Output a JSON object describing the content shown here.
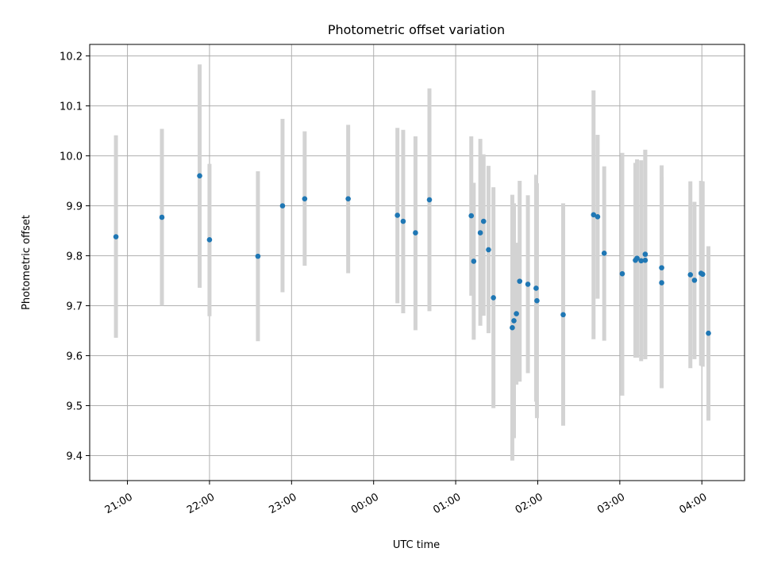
{
  "chart_data": {
    "type": "scatter",
    "title": "Photometric offset variation",
    "xlabel": "UTC time",
    "ylabel": "Photometric offset",
    "x_unit": "UTC time (hours past 00:00; negative = previous evening)",
    "xlim": [
      -3.46,
      4.52
    ],
    "ylim": [
      9.35,
      10.223
    ],
    "grid": true,
    "x_ticks": [
      {
        "value": -3,
        "label": "21:00"
      },
      {
        "value": -2,
        "label": "22:00"
      },
      {
        "value": -1,
        "label": "23:00"
      },
      {
        "value": 0,
        "label": "00:00"
      },
      {
        "value": 1,
        "label": "01:00"
      },
      {
        "value": 2,
        "label": "02:00"
      },
      {
        "value": 3,
        "label": "03:00"
      },
      {
        "value": 4,
        "label": "04:00"
      }
    ],
    "y_ticks": [
      {
        "value": 9.4,
        "label": "9.4"
      },
      {
        "value": 9.5,
        "label": "9.5"
      },
      {
        "value": 9.6,
        "label": "9.6"
      },
      {
        "value": 9.7,
        "label": "9.7"
      },
      {
        "value": 9.8,
        "label": "9.8"
      },
      {
        "value": 9.9,
        "label": "9.9"
      },
      {
        "value": 10.0,
        "label": "10.0"
      },
      {
        "value": 10.1,
        "label": "10.1"
      },
      {
        "value": 10.2,
        "label": "10.2"
      }
    ],
    "colors": {
      "points": "#1f77b4",
      "error_bars": "#d3d3d3",
      "grid": "#b0b0b0"
    },
    "points": [
      {
        "x": -3.14,
        "y": 9.838,
        "lo": 9.636,
        "hi": 10.041
      },
      {
        "x": -2.58,
        "y": 9.877,
        "lo": 9.7,
        "hi": 10.054
      },
      {
        "x": -2.12,
        "y": 9.96,
        "lo": 9.736,
        "hi": 10.183
      },
      {
        "x": -2.0,
        "y": 9.832,
        "lo": 9.679,
        "hi": 9.984
      },
      {
        "x": -1.41,
        "y": 9.799,
        "lo": 9.629,
        "hi": 9.969
      },
      {
        "x": -1.11,
        "y": 9.9,
        "lo": 9.727,
        "hi": 10.074
      },
      {
        "x": -0.84,
        "y": 9.914,
        "lo": 9.78,
        "hi": 10.049
      },
      {
        "x": -0.31,
        "y": 9.914,
        "lo": 9.765,
        "hi": 10.062
      },
      {
        "x": 0.29,
        "y": 9.881,
        "lo": 9.705,
        "hi": 10.056
      },
      {
        "x": 0.36,
        "y": 9.869,
        "lo": 9.685,
        "hi": 10.052
      },
      {
        "x": 0.51,
        "y": 9.846,
        "lo": 9.651,
        "hi": 10.039
      },
      {
        "x": 0.68,
        "y": 9.912,
        "lo": 9.689,
        "hi": 10.135
      },
      {
        "x": 1.19,
        "y": 9.88,
        "lo": 9.72,
        "hi": 10.039
      },
      {
        "x": 1.22,
        "y": 9.789,
        "lo": 9.632,
        "hi": 9.946
      },
      {
        "x": 1.3,
        "y": 9.846,
        "lo": 9.66,
        "hi": 10.034
      },
      {
        "x": 1.34,
        "y": 9.869,
        "lo": 9.68,
        "hi": 10.003
      },
      {
        "x": 1.4,
        "y": 9.812,
        "lo": 9.645,
        "hi": 9.98
      },
      {
        "x": 1.46,
        "y": 9.716,
        "lo": 9.495,
        "hi": 9.937
      },
      {
        "x": 1.69,
        "y": 9.656,
        "lo": 9.39,
        "hi": 9.922
      },
      {
        "x": 1.71,
        "y": 9.67,
        "lo": 9.435,
        "hi": 9.905
      },
      {
        "x": 1.74,
        "y": 9.684,
        "lo": 9.542,
        "hi": 9.826
      },
      {
        "x": 1.78,
        "y": 9.749,
        "lo": 9.548,
        "hi": 9.95
      },
      {
        "x": 1.88,
        "y": 9.743,
        "lo": 9.565,
        "hi": 9.921
      },
      {
        "x": 1.98,
        "y": 9.735,
        "lo": 9.508,
        "hi": 9.962
      },
      {
        "x": 1.99,
        "y": 9.71,
        "lo": 9.475,
        "hi": 9.945
      },
      {
        "x": 2.31,
        "y": 9.682,
        "lo": 9.46,
        "hi": 9.905
      },
      {
        "x": 2.68,
        "y": 9.882,
        "lo": 9.633,
        "hi": 10.131
      },
      {
        "x": 2.73,
        "y": 9.878,
        "lo": 9.714,
        "hi": 10.042
      },
      {
        "x": 2.81,
        "y": 9.805,
        "lo": 9.63,
        "hi": 9.979
      },
      {
        "x": 3.03,
        "y": 9.764,
        "lo": 9.52,
        "hi": 10.006
      },
      {
        "x": 3.19,
        "y": 9.791,
        "lo": 9.596,
        "hi": 9.986
      },
      {
        "x": 3.21,
        "y": 9.795,
        "lo": 9.596,
        "hi": 9.993
      },
      {
        "x": 3.26,
        "y": 9.79,
        "lo": 9.589,
        "hi": 9.991
      },
      {
        "x": 3.31,
        "y": 9.791,
        "lo": 9.593,
        "hi": 10.012
      },
      {
        "x": 3.31,
        "y": 9.803,
        "lo": 9.593,
        "hi": 10.012
      },
      {
        "x": 3.51,
        "y": 9.776,
        "lo": 9.57,
        "hi": 9.981
      },
      {
        "x": 3.51,
        "y": 9.746,
        "lo": 9.535,
        "hi": 9.957
      },
      {
        "x": 3.86,
        "y": 9.762,
        "lo": 9.575,
        "hi": 9.949
      },
      {
        "x": 3.91,
        "y": 9.751,
        "lo": 9.593,
        "hi": 9.908
      },
      {
        "x": 3.99,
        "y": 9.765,
        "lo": 9.58,
        "hi": 9.95
      },
      {
        "x": 4.01,
        "y": 9.763,
        "lo": 9.578,
        "hi": 9.949
      },
      {
        "x": 4.08,
        "y": 9.645,
        "lo": 9.47,
        "hi": 9.819
      }
    ]
  }
}
